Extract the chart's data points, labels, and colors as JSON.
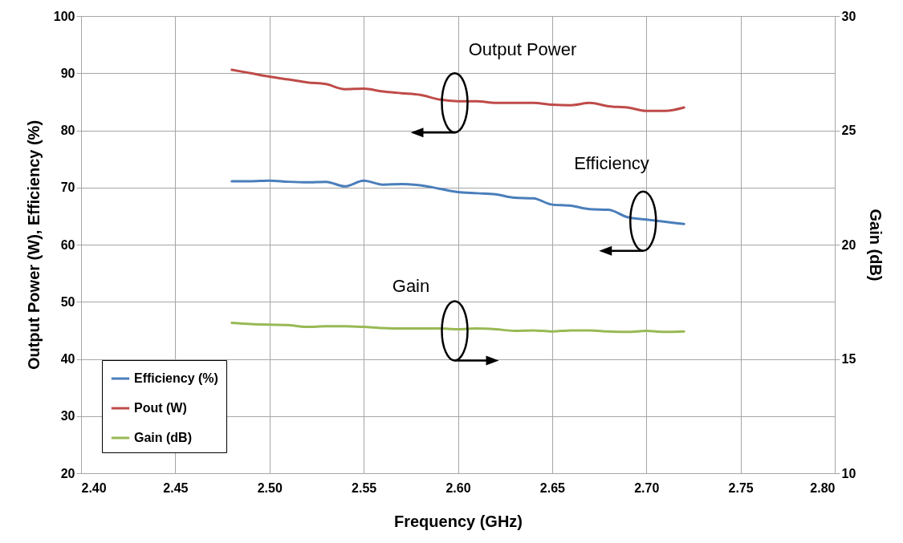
{
  "chart_data": {
    "type": "line",
    "xlabel": "Frequency (GHz)",
    "ylabel": "Output Power (W), Efficiency (%)",
    "y2label": "Gain (dB)",
    "x": [
      2.48,
      2.49,
      2.5,
      2.51,
      2.52,
      2.53,
      2.54,
      2.55,
      2.56,
      2.57,
      2.58,
      2.59,
      2.6,
      2.61,
      2.62,
      2.63,
      2.64,
      2.65,
      2.66,
      2.67,
      2.68,
      2.69,
      2.7,
      2.71,
      2.72
    ],
    "series": [
      {
        "name": "Efficiency (%)",
        "color": "#4a7ebb",
        "values": [
          71.1,
          71.1,
          71.2,
          71.0,
          70.9,
          71.0,
          70.2,
          71.2,
          70.5,
          70.6,
          70.4,
          69.8,
          69.2,
          69.0,
          68.8,
          68.2,
          68.1,
          67.0,
          66.8,
          66.2,
          66.1,
          64.8,
          64.4,
          64.0,
          63.6
        ]
      },
      {
        "name": "Pout (W)",
        "color": "#be4b48",
        "values": [
          90.6,
          90.0,
          89.4,
          88.9,
          88.4,
          88.1,
          87.2,
          87.3,
          86.8,
          86.5,
          86.2,
          85.4,
          85.1,
          85.1,
          84.8,
          84.8,
          84.8,
          84.5,
          84.4,
          84.8,
          84.2,
          84.0,
          83.4,
          83.4,
          84.0
        ]
      },
      {
        "name": "Gain (dB)",
        "color": "#98b954",
        "axis": "y2",
        "values": [
          16.58,
          16.53,
          16.5,
          16.48,
          16.4,
          16.43,
          16.43,
          16.4,
          16.35,
          16.33,
          16.33,
          16.33,
          16.3,
          16.33,
          16.3,
          16.23,
          16.25,
          16.2,
          16.25,
          16.25,
          16.2,
          16.18,
          16.23,
          16.18,
          16.2
        ]
      }
    ],
    "xlim": [
      2.4,
      2.8
    ],
    "xticks": [
      {
        "value": 2.4,
        "label": "2.40"
      },
      {
        "value": 2.45,
        "label": "2.45"
      },
      {
        "value": 2.5,
        "label": "2.50"
      },
      {
        "value": 2.55,
        "label": "2.55"
      },
      {
        "value": 2.6,
        "label": "2.60"
      },
      {
        "value": 2.65,
        "label": "2.65"
      },
      {
        "value": 2.7,
        "label": "2.70"
      },
      {
        "value": 2.75,
        "label": "2.75"
      },
      {
        "value": 2.8,
        "label": "2.80"
      }
    ],
    "ylim": [
      20,
      100
    ],
    "yticks": [
      20,
      30,
      40,
      50,
      60,
      70,
      80,
      90,
      100
    ],
    "y2lim": [
      10,
      30
    ],
    "y2ticks": [
      10,
      15,
      20,
      25,
      30
    ],
    "annotations": [
      "Output Power",
      "Efficiency",
      "Gain"
    ],
    "grid": true,
    "legend": "bottom left",
    "marker": "none",
    "line_style": "solid"
  }
}
